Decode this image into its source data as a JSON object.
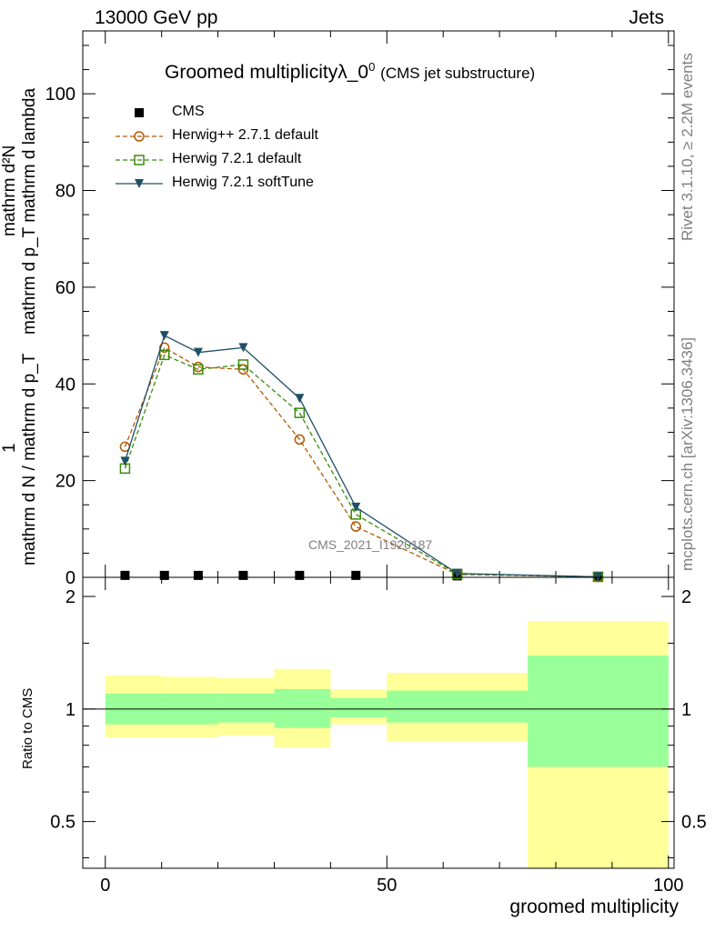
{
  "header": {
    "left": "13000 GeV pp",
    "right": "Jets"
  },
  "title": {
    "main": "Groomed multiplicity",
    "symbol": "λ_0",
    "superscript": "0",
    "sub": "(CMS jet substructure)"
  },
  "side_labels": {
    "rivet": "Rivet 3.1.10, ≥ 2.2M events",
    "mcplots": "mcplots.cern.ch [arXiv:1306.3436]"
  },
  "watermark": "CMS_2021_I1920187",
  "axes": {
    "ylabel_main": "1 / mathrm d N / mathrm d p_T mathrm d N / mathrm d p_T mathrm d lambda",
    "ylabel_main_frac_top": "mathrm d²N",
    "ylabel_main_frac_bottom": "mathrm d p_T mathrm d lambda",
    "ylabel_main_prefix_num": "1",
    "ylabel_main_prefix_den": "mathrm d N / mathrm d p_T",
    "ylabel_ratio": "Ratio to CMS",
    "xlabel": "groomed multiplicity"
  },
  "chart_data": [
    {
      "type": "line",
      "panel": "main",
      "xlim": [
        -4,
        101
      ],
      "ylim": [
        0,
        113
      ],
      "yticks": [
        0,
        20,
        40,
        60,
        80,
        100
      ],
      "series": [
        {
          "name": "CMS",
          "color": "#000000",
          "marker": "square-filled",
          "x": [
            3.5,
            10.5,
            16.5,
            24.5,
            34.5,
            44.5,
            62.5,
            87.5
          ],
          "y": [
            0.4,
            0.4,
            0.4,
            0.4,
            0.4,
            0.4,
            0.3,
            0.2
          ]
        },
        {
          "name": "Herwig++ 2.7.1 default",
          "color": "#b35900",
          "marker": "circle-open",
          "dash": true,
          "x": [
            3.5,
            10.5,
            16.5,
            24.5,
            34.5,
            44.5,
            62.5,
            87.5
          ],
          "y": [
            27,
            47.5,
            43.5,
            43,
            28.5,
            10.5,
            0.6,
            0.1
          ]
        },
        {
          "name": "Herwig 7.2.1 default",
          "color": "#3a8c0a",
          "marker": "square-open",
          "dash": true,
          "x": [
            3.5,
            10.5,
            16.5,
            24.5,
            34.5,
            44.5,
            62.5,
            87.5
          ],
          "y": [
            22.5,
            46,
            43,
            44,
            34,
            13,
            0.7,
            0.1
          ]
        },
        {
          "name": "Herwig 7.2.1 softTune",
          "color": "#1f4f66",
          "marker": "triangle-down-filled",
          "dash": false,
          "x": [
            3.5,
            10.5,
            16.5,
            24.5,
            34.5,
            44.5,
            62.5,
            87.5
          ],
          "y": [
            24,
            50,
            46.5,
            47.5,
            37,
            14.5,
            0.8,
            0.1
          ]
        }
      ]
    },
    {
      "type": "area",
      "panel": "ratio",
      "xlim": [
        -4,
        101
      ],
      "ylim": [
        0.375,
        2.25
      ],
      "scale": "log",
      "yticks": [
        0.5,
        1,
        2
      ],
      "xticks": [
        0,
        50,
        100
      ],
      "bands": {
        "edges": [
          0,
          10,
          20,
          30,
          40,
          50,
          75,
          100
        ],
        "inner_low": [
          0.91,
          0.91,
          0.92,
          0.89,
          0.95,
          0.92,
          0.7,
          0.375
        ],
        "inner_high": [
          1.1,
          1.1,
          1.1,
          1.13,
          1.07,
          1.12,
          1.39,
          2.07
        ],
        "outer_low": [
          0.84,
          0.84,
          0.85,
          0.79,
          0.91,
          0.82,
          0.375,
          0.375
        ],
        "outer_high": [
          1.23,
          1.22,
          1.21,
          1.28,
          1.13,
          1.25,
          1.72,
          2.25
        ]
      },
      "colors": {
        "outer": "#ffff99",
        "inner": "#99ff99"
      }
    }
  ]
}
